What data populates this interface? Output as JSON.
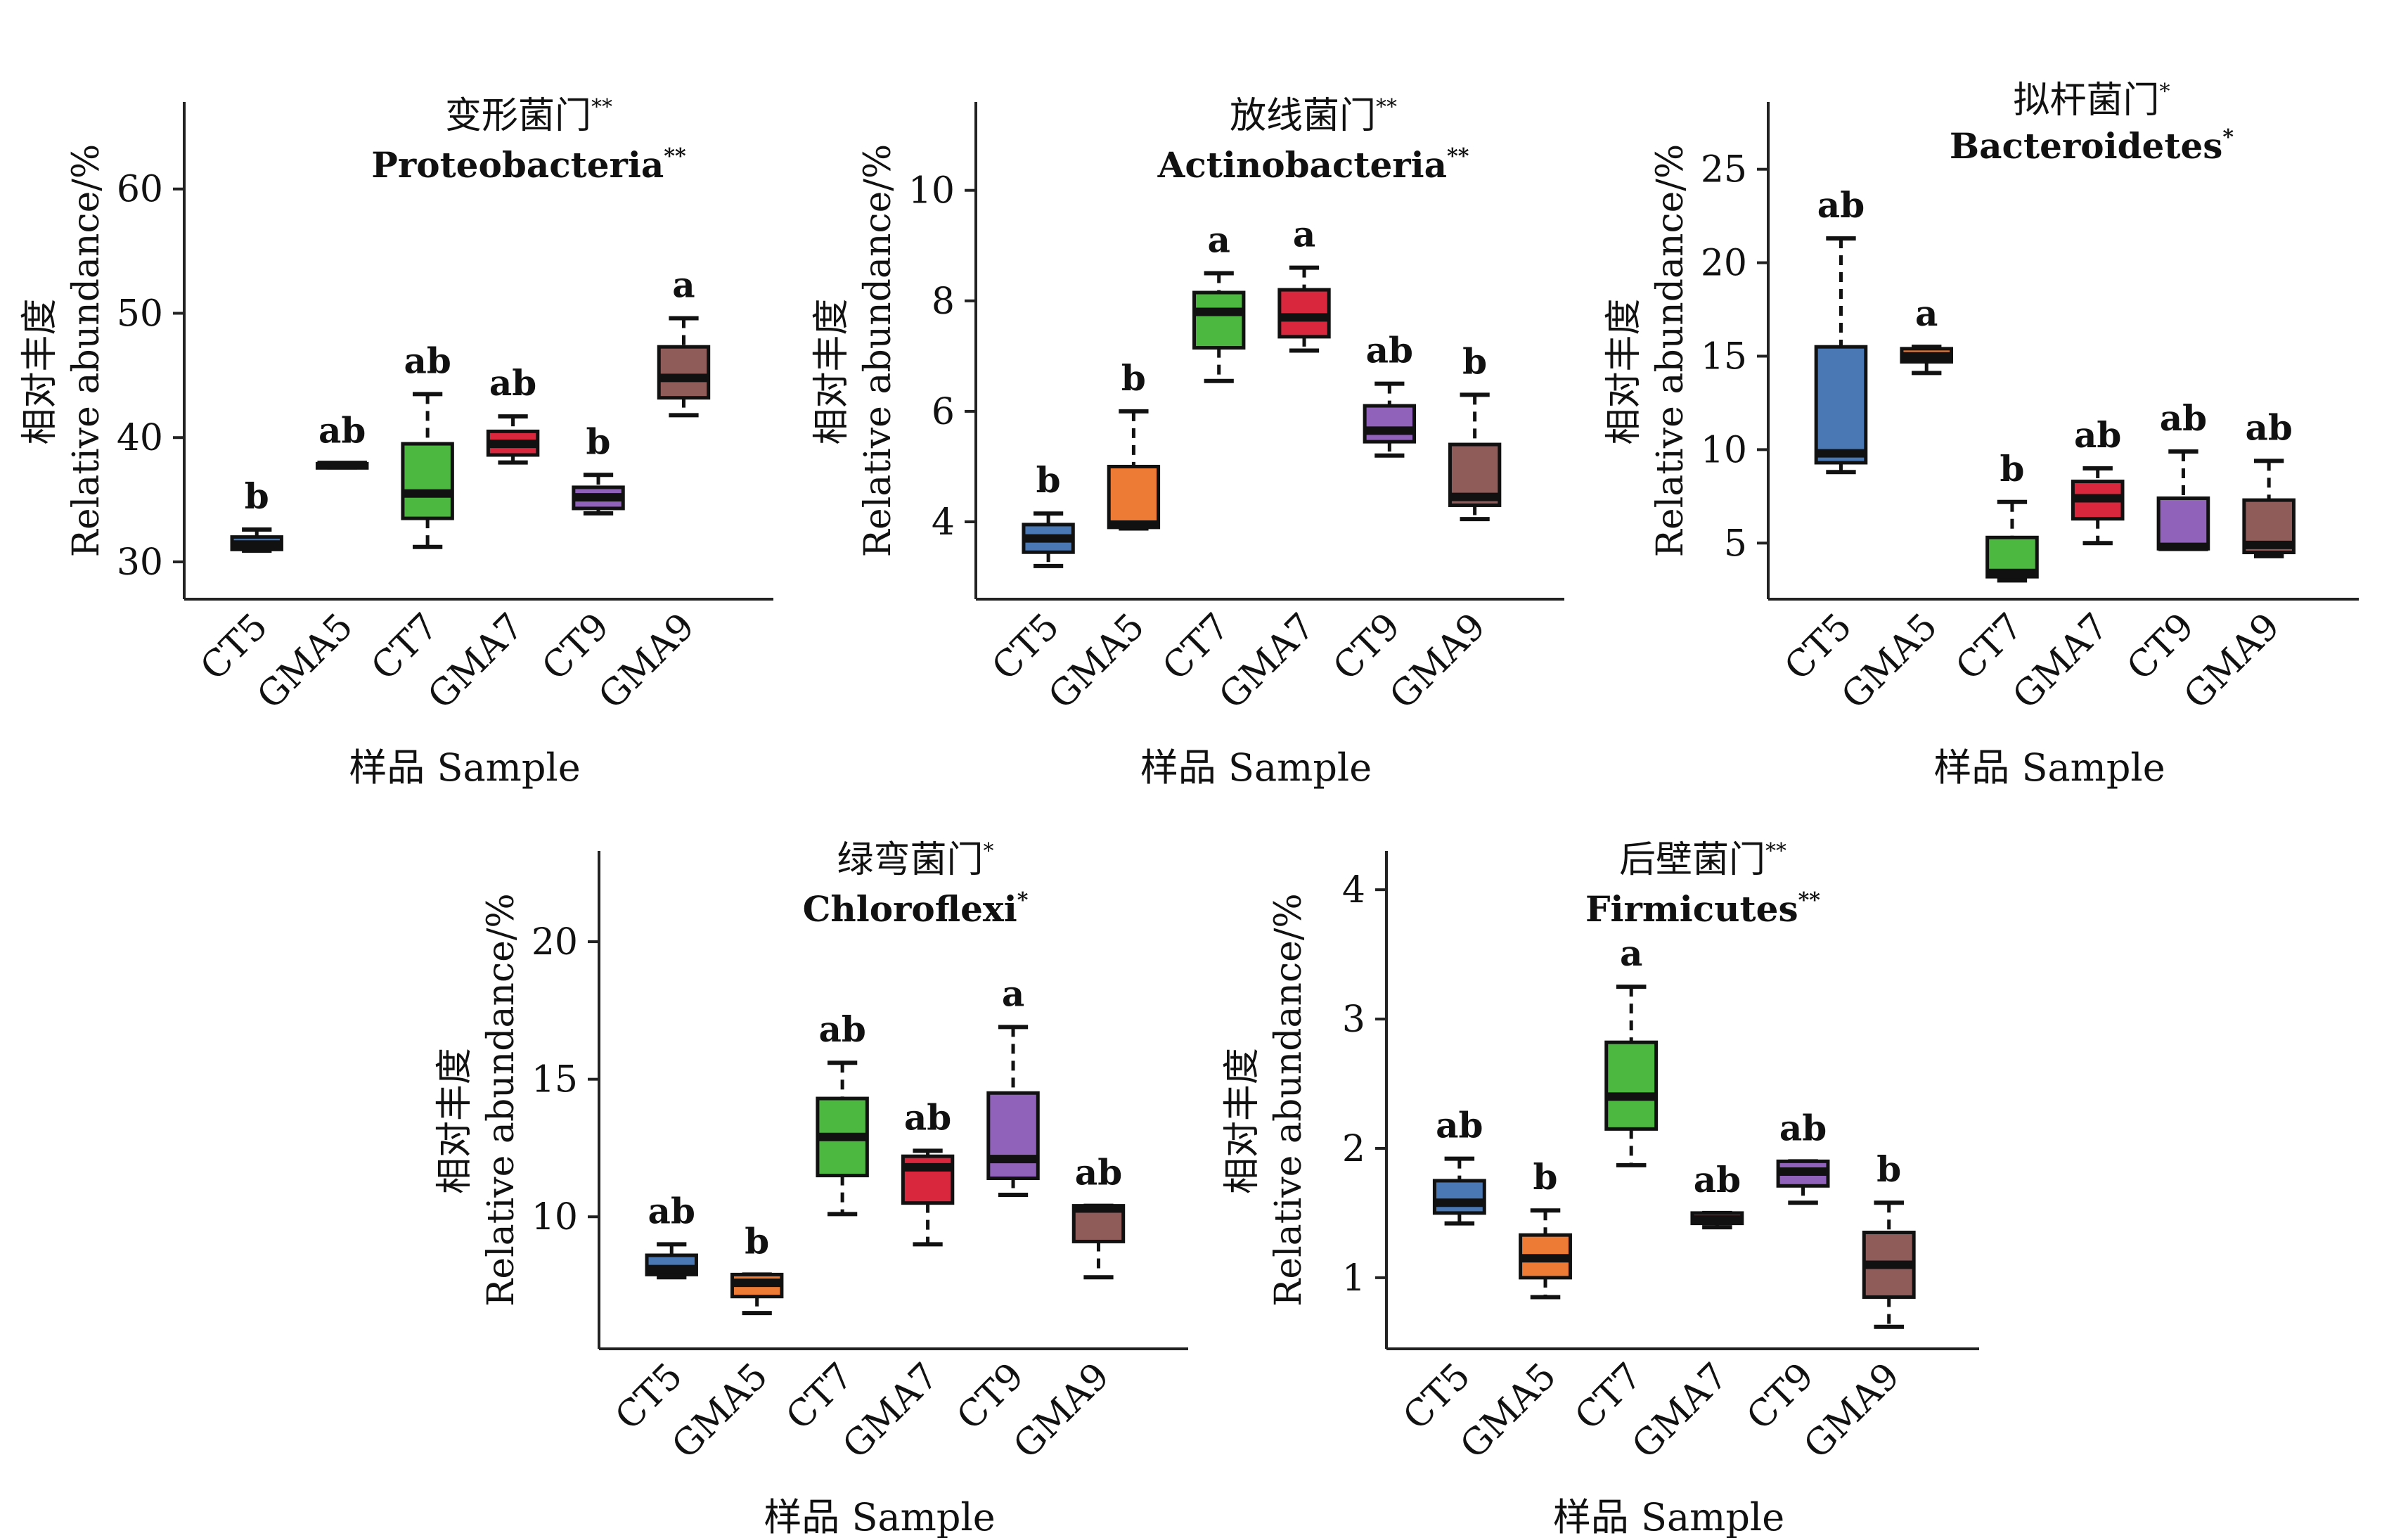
{
  "figure": {
    "x_title": "样品 Sample",
    "y_title_cn": "相对丰度",
    "y_title_en": "Relative abundance/%"
  },
  "colors": {
    "CT5": "#4a78b4",
    "GMA5": "#ee7b35",
    "CT7": "#4db83f",
    "GMA7": "#d9283d",
    "CT9": "#9062ba",
    "GMA9": "#8f5c5a"
  },
  "chart_data": [
    {
      "type": "box",
      "title_cn": "变形菌门",
      "title_en": "Proteobacteria",
      "significance": "**",
      "categories": [
        "CT5",
        "GMA5",
        "CT7",
        "GMA7",
        "CT9",
        "GMA9"
      ],
      "ylim": [
        27,
        67
      ],
      "yticks": [
        30,
        40,
        50,
        60
      ],
      "boxes": [
        {
          "min": 30.9,
          "q1": 31.0,
          "median": 31.4,
          "q3": 32.0,
          "max": 32.6,
          "letter": "b"
        },
        {
          "min": 37.6,
          "q1": 37.6,
          "median": 37.8,
          "q3": 37.9,
          "max": 37.9,
          "letter": "ab"
        },
        {
          "min": 31.2,
          "q1": 33.5,
          "median": 35.5,
          "q3": 39.5,
          "max": 43.5,
          "letter": "ab"
        },
        {
          "min": 38.0,
          "q1": 38.6,
          "median": 39.5,
          "q3": 40.5,
          "max": 41.7,
          "letter": "ab"
        },
        {
          "min": 33.9,
          "q1": 34.3,
          "median": 35.2,
          "q3": 36.0,
          "max": 37.0,
          "letter": "b"
        },
        {
          "min": 41.8,
          "q1": 43.2,
          "median": 44.8,
          "q3": 47.3,
          "max": 49.6,
          "letter": "a"
        }
      ]
    },
    {
      "type": "box",
      "title_cn": "放线菌门",
      "title_en": "Actinobacteria",
      "significance": "**",
      "categories": [
        "CT5",
        "GMA5",
        "CT7",
        "GMA7",
        "CT9",
        "GMA9"
      ],
      "ylim": [
        2.6,
        11.6
      ],
      "yticks": [
        4,
        6,
        8,
        10
      ],
      "boxes": [
        {
          "min": 3.2,
          "q1": 3.45,
          "median": 3.7,
          "q3": 3.95,
          "max": 4.15,
          "letter": "b"
        },
        {
          "min": 3.88,
          "q1": 3.9,
          "median": 3.95,
          "q3": 5.0,
          "max": 6.0,
          "letter": "b"
        },
        {
          "min": 6.55,
          "q1": 7.15,
          "median": 7.8,
          "q3": 8.15,
          "max": 8.5,
          "letter": "a"
        },
        {
          "min": 7.1,
          "q1": 7.35,
          "median": 7.7,
          "q3": 8.2,
          "max": 8.6,
          "letter": "a"
        },
        {
          "min": 5.2,
          "q1": 5.45,
          "median": 5.65,
          "q3": 6.1,
          "max": 6.5,
          "letter": "ab"
        },
        {
          "min": 4.05,
          "q1": 4.3,
          "median": 4.45,
          "q3": 5.4,
          "max": 6.3,
          "letter": "b"
        }
      ]
    },
    {
      "type": "box",
      "title_cn": "拟杆菌门",
      "title_en": "Bacteroidetes",
      "significance": "*",
      "categories": [
        "CT5",
        "GMA5",
        "CT7",
        "GMA7",
        "CT9",
        "GMA9"
      ],
      "ylim": [
        2,
        28.6
      ],
      "yticks": [
        5,
        10,
        15,
        20,
        25
      ],
      "boxes": [
        {
          "min": 8.8,
          "q1": 9.3,
          "median": 9.8,
          "q3": 15.5,
          "max": 21.3,
          "letter": "ab"
        },
        {
          "min": 14.1,
          "q1": 14.7,
          "median": 15.0,
          "q3": 15.4,
          "max": 15.5,
          "letter": "a"
        },
        {
          "min": 3.0,
          "q1": 3.2,
          "median": 3.4,
          "q3": 5.3,
          "max": 7.2,
          "letter": "b"
        },
        {
          "min": 5.0,
          "q1": 6.3,
          "median": 7.4,
          "q3": 8.3,
          "max": 9.0,
          "letter": "ab"
        },
        {
          "min": 4.7,
          "q1": 4.7,
          "median": 4.8,
          "q3": 7.4,
          "max": 9.9,
          "letter": "ab"
        },
        {
          "min": 4.3,
          "q1": 4.5,
          "median": 4.9,
          "q3": 7.3,
          "max": 9.4,
          "letter": "ab"
        }
      ]
    },
    {
      "type": "box",
      "title_cn": "绿弯菌门",
      "title_en": "Chloroflexi",
      "significance": "*",
      "categories": [
        "CT5",
        "GMA5",
        "CT7",
        "GMA7",
        "CT9",
        "GMA9"
      ],
      "ylim": [
        5.2,
        23.3
      ],
      "yticks": [
        10,
        15,
        20
      ],
      "boxes": [
        {
          "min": 7.8,
          "q1": 7.9,
          "median": 8.1,
          "q3": 8.6,
          "max": 9.0,
          "letter": "ab"
        },
        {
          "min": 6.5,
          "q1": 7.1,
          "median": 7.6,
          "q3": 7.9,
          "max": 7.9,
          "letter": "b"
        },
        {
          "min": 10.1,
          "q1": 11.5,
          "median": 12.9,
          "q3": 14.3,
          "max": 15.6,
          "letter": "ab"
        },
        {
          "min": 9.0,
          "q1": 10.5,
          "median": 11.8,
          "q3": 12.2,
          "max": 12.4,
          "letter": "ab"
        },
        {
          "min": 10.8,
          "q1": 11.4,
          "median": 12.1,
          "q3": 14.5,
          "max": 16.9,
          "letter": "a"
        },
        {
          "min": 7.8,
          "q1": 9.1,
          "median": 10.3,
          "q3": 10.4,
          "max": 10.4,
          "letter": "ab"
        }
      ]
    },
    {
      "type": "box",
      "title_cn": "后壁菌门",
      "title_en": "Firmicutes",
      "significance": "**",
      "categories": [
        "CT5",
        "GMA5",
        "CT7",
        "GMA7",
        "CT9",
        "GMA9"
      ],
      "ylim": [
        0.45,
        4.3
      ],
      "yticks": [
        1,
        2,
        3,
        4
      ],
      "boxes": [
        {
          "min": 1.42,
          "q1": 1.5,
          "median": 1.58,
          "q3": 1.75,
          "max": 1.92,
          "letter": "ab"
        },
        {
          "min": 0.85,
          "q1": 1.0,
          "median": 1.15,
          "q3": 1.33,
          "max": 1.52,
          "letter": "b"
        },
        {
          "min": 1.87,
          "q1": 2.15,
          "median": 2.4,
          "q3": 2.82,
          "max": 3.25,
          "letter": "a"
        },
        {
          "min": 1.39,
          "q1": 1.42,
          "median": 1.45,
          "q3": 1.5,
          "max": 1.5,
          "letter": "ab"
        },
        {
          "min": 1.58,
          "q1": 1.71,
          "median": 1.82,
          "q3": 1.9,
          "max": 1.9,
          "letter": "ab"
        },
        {
          "min": 0.62,
          "q1": 0.85,
          "median": 1.1,
          "q3": 1.35,
          "max": 1.58,
          "letter": "b"
        }
      ]
    }
  ]
}
